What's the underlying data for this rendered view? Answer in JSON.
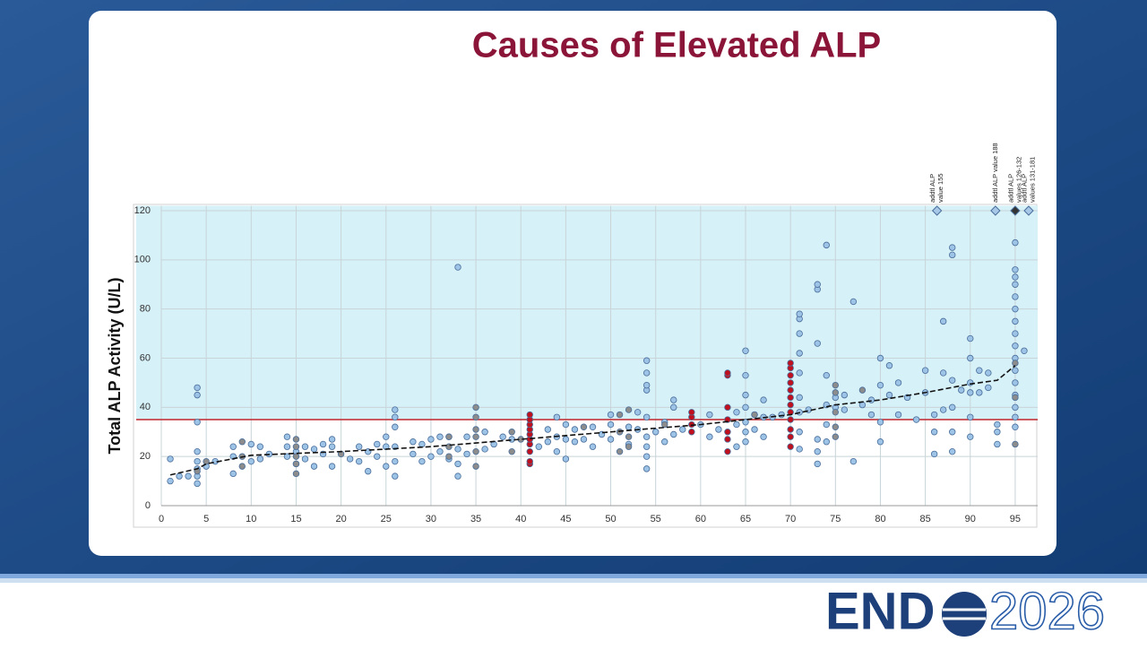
{
  "chart_data": {
    "type": "scatter",
    "title": "Causes of Elevated ALP",
    "y_label": "Total ALP Activity (U/L)",
    "xlim": [
      0,
      97.5
    ],
    "ylim": [
      0,
      122
    ],
    "xticks": [
      0,
      5,
      10,
      15,
      20,
      25,
      30,
      35,
      40,
      45,
      50,
      55,
      60,
      65,
      70,
      75,
      80,
      85,
      90,
      95
    ],
    "yticks": [
      0,
      20,
      40,
      60,
      80,
      100,
      120
    ],
    "grid": true,
    "threshold": 35,
    "threshold_color": "#c0272d",
    "shade_color": "#d6f1f8",
    "series": [
      {
        "kind": "points",
        "color": "#9dc3e6",
        "x": [
          1,
          1,
          2,
          3,
          4,
          4,
          4,
          4,
          4,
          4,
          4,
          4,
          5,
          6,
          8,
          8,
          8,
          10,
          10,
          11,
          11,
          12,
          14,
          14,
          14,
          15,
          15,
          16,
          16,
          17,
          17,
          18,
          18,
          19,
          19,
          19,
          21,
          22,
          22,
          23,
          23,
          24,
          24,
          25,
          25,
          25,
          26,
          26,
          26,
          26,
          26,
          26,
          28,
          28,
          29,
          29,
          30,
          30,
          31,
          31,
          32,
          32,
          33,
          33,
          33,
          33,
          34,
          34,
          36,
          36,
          37,
          38,
          39,
          42,
          43,
          43,
          44,
          44,
          44,
          45,
          45,
          45,
          46,
          46,
          47,
          48,
          48,
          49,
          50,
          50,
          50,
          52,
          52,
          53,
          53,
          54,
          54,
          54,
          54,
          54,
          54,
          54,
          54,
          54,
          55,
          56,
          56,
          57,
          57,
          57,
          58,
          60,
          61,
          61,
          62,
          64,
          64,
          64,
          65,
          65,
          65,
          65,
          65,
          65,
          65,
          66,
          66,
          67,
          67,
          67,
          68,
          69,
          71,
          71,
          71,
          71,
          71,
          71,
          71,
          71,
          71,
          72,
          73,
          73,
          73,
          73,
          73,
          73,
          74,
          74,
          74,
          74,
          74,
          75,
          75,
          76,
          76,
          77,
          77,
          78,
          79,
          79,
          80,
          80,
          80,
          80,
          81,
          81,
          82,
          82,
          83,
          84,
          85,
          85,
          86,
          86,
          86,
          87,
          87,
          87,
          88,
          88,
          88,
          88,
          88,
          88,
          89,
          90,
          90,
          90,
          90,
          90,
          90,
          91,
          91,
          92,
          92,
          93,
          93,
          93,
          95,
          95,
          95,
          95,
          95,
          95,
          95,
          95,
          95,
          95,
          95,
          95,
          95,
          95,
          95,
          95,
          96
        ],
        "values": [
          19,
          10,
          12,
          12,
          9,
          12,
          15,
          18,
          22,
          34,
          45,
          48,
          16,
          18,
          13,
          20,
          24,
          18,
          25,
          19,
          24,
          21,
          20,
          24,
          28,
          17,
          22,
          19,
          24,
          16,
          23,
          21,
          25,
          16,
          24,
          27,
          19,
          18,
          24,
          14,
          22,
          20,
          25,
          16,
          24,
          28,
          12,
          18,
          24,
          32,
          36,
          39,
          21,
          26,
          18,
          25,
          20,
          27,
          22,
          28,
          19,
          28,
          12,
          17,
          23,
          97,
          21,
          28,
          23,
          30,
          25,
          28,
          27,
          24,
          26,
          31,
          22,
          28,
          36,
          19,
          27,
          33,
          26,
          31,
          27,
          24,
          32,
          29,
          27,
          33,
          37,
          25,
          32,
          31,
          38,
          15,
          20,
          24,
          28,
          36,
          47,
          49,
          54,
          59,
          30,
          26,
          34,
          29,
          40,
          43,
          31,
          33,
          28,
          37,
          31,
          24,
          33,
          38,
          26,
          30,
          34,
          40,
          45,
          53,
          63,
          31,
          37,
          28,
          36,
          43,
          36,
          37,
          23,
          30,
          38,
          44,
          54,
          62,
          70,
          76,
          78,
          39,
          17,
          22,
          27,
          66,
          88,
          90,
          26,
          33,
          41,
          53,
          106,
          40,
          44,
          39,
          45,
          18,
          83,
          41,
          37,
          43,
          26,
          34,
          49,
          60,
          45,
          57,
          37,
          50,
          44,
          35,
          46,
          55,
          21,
          30,
          37,
          39,
          54,
          75,
          22,
          30,
          40,
          51,
          102,
          105,
          47,
          28,
          36,
          46,
          50,
          60,
          68,
          46,
          55,
          48,
          54,
          25,
          30,
          33,
          32,
          36,
          40,
          45,
          50,
          55,
          60,
          65,
          70,
          75,
          80,
          85,
          90,
          93,
          96,
          107,
          63
        ]
      },
      {
        "kind": "points",
        "color": "#8c8c8c",
        "x": [
          4,
          5,
          9,
          9,
          9,
          15,
          15,
          15,
          15,
          15,
          20,
          32,
          32,
          32,
          35,
          35,
          35,
          35,
          35,
          35,
          39,
          39,
          40,
          47,
          51,
          51,
          51,
          52,
          52,
          52,
          56,
          66,
          75,
          75,
          75,
          75,
          75,
          78,
          95,
          95,
          95
        ],
        "values": [
          14,
          18,
          16,
          20,
          26,
          13,
          17,
          20,
          24,
          27,
          21,
          20,
          24,
          28,
          16,
          22,
          28,
          31,
          36,
          40,
          22,
          30,
          27,
          32,
          22,
          30,
          37,
          24,
          28,
          39,
          33,
          37,
          28,
          32,
          38,
          46,
          49,
          47,
          25,
          44,
          58
        ]
      },
      {
        "kind": "points",
        "color": "#c0101e",
        "x": [
          41,
          41,
          41,
          41,
          41,
          41,
          41,
          41,
          41,
          41,
          59,
          59,
          59,
          59,
          63,
          63,
          63,
          63,
          63,
          63,
          63,
          70,
          70,
          70,
          70,
          70,
          70,
          70,
          70,
          70,
          70,
          70,
          70
        ],
        "values": [
          17,
          18,
          22,
          25,
          27,
          29,
          31,
          33,
          35,
          37,
          30,
          33,
          36,
          38,
          22,
          27,
          30,
          35,
          40,
          53,
          54,
          24,
          28,
          31,
          35,
          38,
          41,
          44,
          47,
          50,
          53,
          56,
          58
        ]
      },
      {
        "kind": "line",
        "color": "#111111",
        "x": [
          1,
          4,
          5,
          10,
          20,
          30,
          40,
          50,
          60,
          70,
          75,
          80,
          85,
          90,
          93,
          94,
          95
        ],
        "values": [
          12.5,
          15,
          17,
          20.5,
          22,
          24,
          27,
          30,
          33,
          37,
          41,
          43,
          46,
          49.5,
          51,
          54,
          57
        ]
      },
      {
        "kind": "diamonds",
        "colors": [
          "#a8c8e8",
          "#a8c8e8",
          "#333333",
          "#a8c8e8"
        ],
        "x": [
          86.3,
          92.8,
          95,
          96.5
        ],
        "values": [
          120,
          120,
          120,
          120
        ],
        "point_labels": [
          [
            "addtl ALP",
            "value 155"
          ],
          [
            "addtl ALP value 188"
          ],
          [
            "addtl ALP",
            "values 126-132"
          ],
          [
            "addtl ALP",
            "values 131-181"
          ]
        ]
      }
    ]
  },
  "footer": {
    "logo_left": "END",
    "logo_right": "2026"
  }
}
